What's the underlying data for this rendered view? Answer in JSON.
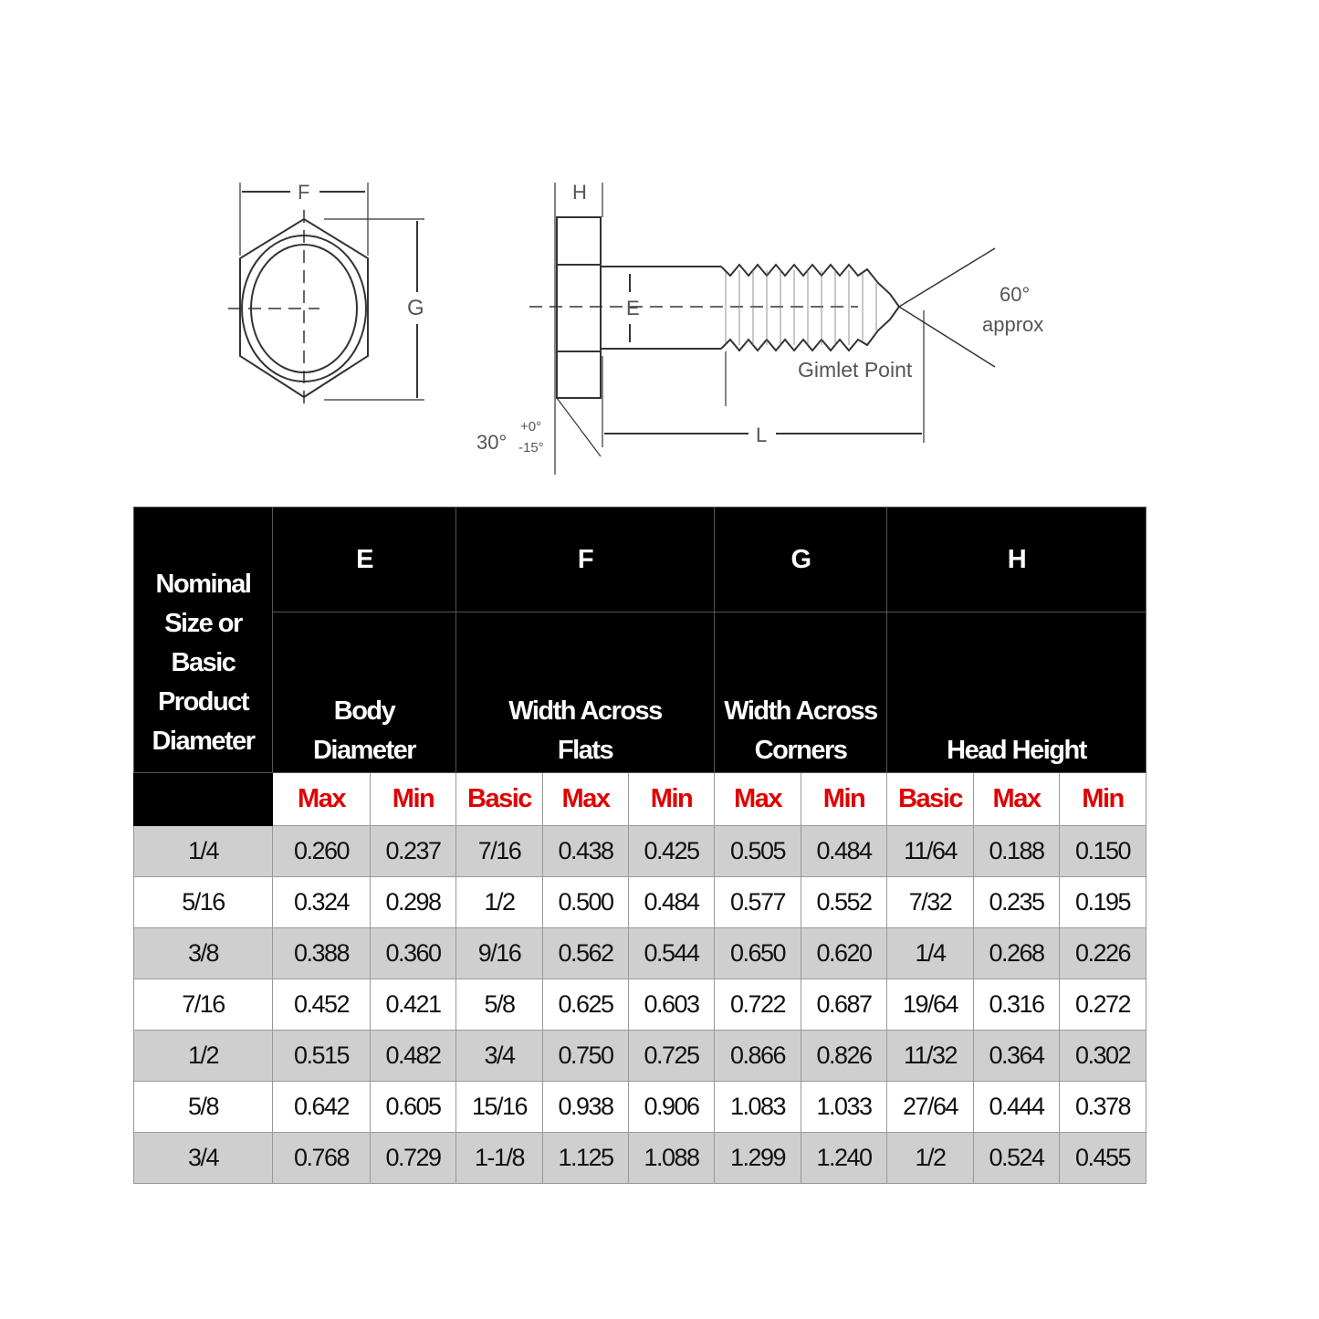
{
  "drawing": {
    "labels": {
      "F": "F",
      "G": "G",
      "H": "H",
      "E": "E",
      "L": "L",
      "angle_tip": "60°",
      "approx": "approx",
      "gimlet": "Gimlet Point",
      "angle_head": "30°",
      "tol_plus": "+0°",
      "tol_minus": "-15°"
    }
  },
  "table": {
    "row_header": "Nominal Size or Basic Product Diameter",
    "row_header_lines": [
      "Nominal",
      "Size or",
      "Basic",
      "Product",
      "Diameter"
    ],
    "groups": [
      {
        "letter": "E",
        "desc": [
          "Body",
          "Diameter"
        ]
      },
      {
        "letter": "F",
        "desc": [
          "Width Across",
          "Flats"
        ]
      },
      {
        "letter": "G",
        "desc": [
          "Width Across",
          "Corners"
        ]
      },
      {
        "letter": "H",
        "desc": [
          "",
          "Head Height"
        ]
      }
    ],
    "subheaders": [
      "Max",
      "Min",
      "Basic",
      "Max",
      "Min",
      "Max",
      "Min",
      "Basic",
      "Max",
      "Min"
    ],
    "rows": [
      [
        "1/4",
        "0.260",
        "0.237",
        "7/16",
        "0.438",
        "0.425",
        "0.505",
        "0.484",
        "11/64",
        "0.188",
        "0.150"
      ],
      [
        "5/16",
        "0.324",
        "0.298",
        "1/2",
        "0.500",
        "0.484",
        "0.577",
        "0.552",
        "7/32",
        "0.235",
        "0.195"
      ],
      [
        "3/8",
        "0.388",
        "0.360",
        "9/16",
        "0.562",
        "0.544",
        "0.650",
        "0.620",
        "1/4",
        "0.268",
        "0.226"
      ],
      [
        "7/16",
        "0.452",
        "0.421",
        "5/8",
        "0.625",
        "0.603",
        "0.722",
        "0.687",
        "19/64",
        "0.316",
        "0.272"
      ],
      [
        "1/2",
        "0.515",
        "0.482",
        "3/4",
        "0.750",
        "0.725",
        "0.866",
        "0.826",
        "11/32",
        "0.364",
        "0.302"
      ],
      [
        "5/8",
        "0.642",
        "0.605",
        "15/16",
        "0.938",
        "0.906",
        "1.083",
        "1.033",
        "27/64",
        "0.444",
        "0.378"
      ],
      [
        "3/4",
        "0.768",
        "0.729",
        "1-1/8",
        "1.125",
        "1.088",
        "1.299",
        "1.240",
        "1/2",
        "0.524",
        "0.455"
      ]
    ]
  },
  "colors": {
    "header_bg": "#000000",
    "subheader_text": "#e00000",
    "row_alt": "#cfcfcf"
  }
}
